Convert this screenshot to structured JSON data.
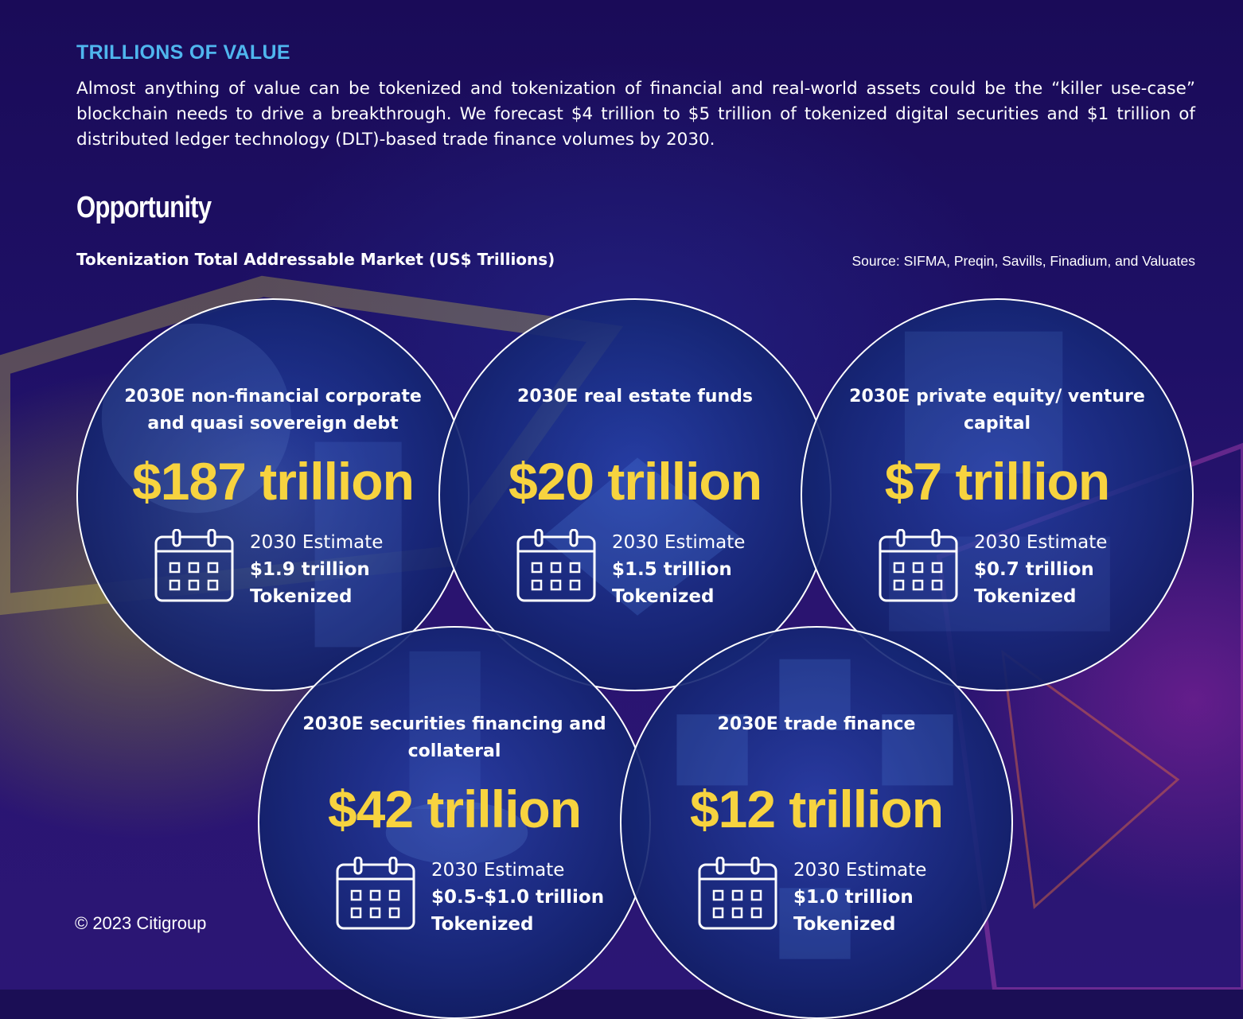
{
  "kicker": "TRILLIONS OF VALUE",
  "intro": "Almost anything of value can be tokenized and tokenization of financial and real-world assets could be the “killer use-case” blockchain needs to drive a breakthrough. We forecast $4 trillion to $5 trillion of tokenized digital securities and $1 trillion of distributed ledger technology (DLT)-based trade finance volumes by 2030.",
  "heading": "Opportunity",
  "subheading": "Tokenization Total Addressable Market (US$ Trillions)",
  "source": "Source: SIFMA, Preqin, Savills, Finadium, and Valuates",
  "copyright": "© 2023 Citigroup",
  "colors": {
    "accent_blue": "#4fb6ee",
    "value_yellow": "#f7d33f",
    "ring": "#ffffff"
  },
  "markets": [
    {
      "label": "2030E non-financial corporate and quasi sovereign debt",
      "value": "$187 trillion",
      "estimate_label": "2030 Estimate",
      "tokenized_value": "$1.9 trillion",
      "tokenized_label": "Tokenized",
      "icon": "calendar-icon"
    },
    {
      "label": "2030E real estate funds",
      "value": "$20 trillion",
      "estimate_label": "2030 Estimate",
      "tokenized_value": "$1.5 trillion",
      "tokenized_label": "Tokenized",
      "icon": "calendar-icon"
    },
    {
      "label": "2030E private equity/ venture capital",
      "value": "$7 trillion",
      "estimate_label": "2030 Estimate",
      "tokenized_value": "$0.7 trillion",
      "tokenized_label": "Tokenized",
      "icon": "calendar-icon"
    },
    {
      "label": "2030E securities financing and collateral",
      "value": "$42 trillion",
      "estimate_label": "2030 Estimate",
      "tokenized_value": "$0.5-$1.0 trillion",
      "tokenized_label": "Tokenized",
      "icon": "calendar-icon"
    },
    {
      "label": "2030E trade finance",
      "value": "$12 trillion",
      "estimate_label": "2030 Estimate",
      "tokenized_value": "$1.0 trillion",
      "tokenized_label": "Tokenized",
      "icon": "calendar-icon"
    }
  ]
}
